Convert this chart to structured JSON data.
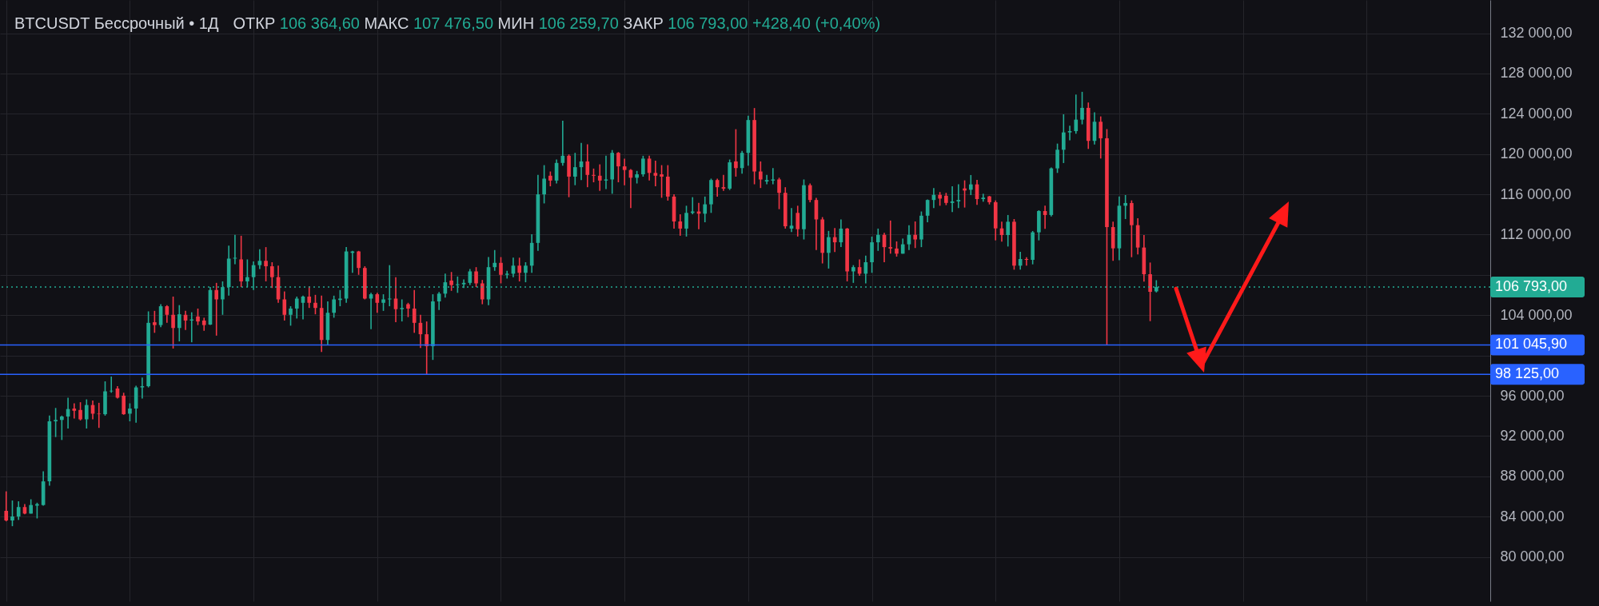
{
  "chart_data": {
    "type": "candlestick",
    "title": "BTCUSDT Бессрочный • 1Д",
    "annotations": [
      "ОТКР 106 364,60 МАКС 107 476,50 МИН 106 259,70 ЗАКР 106 793,00 +428,40 (+0,40%)"
    ],
    "categories": [
      null,
      null,
      null,
      null,
      null,
      null,
      null,
      null,
      null,
      null,
      null,
      null,
      null,
      null,
      null,
      null,
      null,
      null,
      null,
      null,
      null,
      null,
      null,
      null,
      null,
      null,
      null,
      null,
      null,
      null,
      null,
      null,
      null,
      null,
      null,
      null,
      null,
      null,
      null,
      null,
      null,
      null,
      null,
      null,
      null,
      null,
      null,
      null,
      null,
      null,
      null,
      null,
      null,
      null,
      null,
      null,
      null,
      null,
      null,
      null,
      null,
      null,
      null,
      null,
      null,
      null,
      null,
      null,
      null,
      null,
      null,
      null,
      null,
      null,
      null,
      null,
      null,
      null,
      null,
      null,
      null,
      null,
      null,
      null,
      null,
      null,
      null,
      null,
      null,
      null,
      null,
      null,
      null,
      null,
      null,
      null,
      null,
      null,
      null,
      null,
      null,
      null,
      null,
      null,
      null,
      null,
      null,
      null,
      null,
      null,
      null,
      null,
      null,
      null,
      null,
      null,
      null,
      null,
      null,
      null,
      null,
      null,
      null,
      null,
      null,
      null,
      null,
      null,
      null,
      null,
      null,
      null,
      null,
      null,
      null,
      null,
      null,
      null,
      null,
      null,
      null,
      null,
      null,
      null,
      null,
      null,
      null,
      null,
      null,
      null,
      null,
      null,
      null,
      null,
      null,
      null,
      null,
      null,
      null,
      null,
      null,
      null,
      null,
      null,
      null,
      null,
      null,
      null,
      null,
      null,
      null,
      null,
      null,
      null,
      null,
      null,
      null,
      null,
      null,
      null,
      null,
      null,
      null,
      null,
      null,
      null,
      null,
      null,
      null,
      null,
      null,
      null,
      null,
      null,
      null,
      null,
      null,
      null,
      null,
      null,
      null,
      null,
      null,
      null,
      null,
      null,
      null,
      null,
      null,
      null,
      null,
      null,
      null,
      null,
      null,
      null,
      null,
      null,
      null,
      null,
      null,
      null,
      null,
      null,
      null,
      null,
      null,
      null,
      null,
      null,
      null,
      null,
      null,
      null,
      null,
      null,
      null,
      null,
      null,
      null
    ],
    "ohlc": [
      [
        84580,
        86510,
        83530,
        83620
      ],
      [
        83620,
        85600,
        83050,
        84010
      ],
      [
        84010,
        85520,
        83670,
        84950
      ],
      [
        84950,
        85240,
        84240,
        84300
      ],
      [
        84300,
        85720,
        84300,
        85150
      ],
      [
        85090,
        85380,
        83820,
        85240
      ],
      [
        85150,
        88500,
        85090,
        87500
      ],
      [
        87500,
        94030,
        87080,
        93460
      ],
      [
        93460,
        94790,
        91900,
        93600
      ],
      [
        93600,
        94030,
        91610,
        93940
      ],
      [
        93940,
        95810,
        92750,
        94680
      ],
      [
        94730,
        95250,
        93740,
        94510
      ],
      [
        94590,
        95360,
        93550,
        93660
      ],
      [
        93660,
        95640,
        92750,
        95080
      ],
      [
        95080,
        95530,
        93660,
        94220
      ],
      [
        94220,
        95300,
        92810,
        94170
      ],
      [
        94170,
        97430,
        94030,
        96440
      ],
      [
        96440,
        97910,
        96300,
        96500
      ],
      [
        96720,
        96950,
        95730,
        95810
      ],
      [
        96010,
        96300,
        94110,
        94170
      ],
      [
        94220,
        95250,
        93460,
        94730
      ],
      [
        94730,
        97000,
        93320,
        96830
      ],
      [
        96830,
        97800,
        95730,
        96950
      ],
      [
        96950,
        104380,
        96830,
        103240
      ],
      [
        103300,
        104430,
        102250,
        103020
      ],
      [
        103020,
        105090,
        102820,
        104890
      ],
      [
        104890,
        105000,
        103240,
        104040
      ],
      [
        104040,
        105850,
        100690,
        102730
      ],
      [
        102730,
        105000,
        101400,
        104090
      ],
      [
        104040,
        104430,
        102530,
        103470
      ],
      [
        103470,
        104290,
        101310,
        103580
      ],
      [
        103870,
        104660,
        103020,
        103380
      ],
      [
        103470,
        103750,
        102450,
        103020
      ],
      [
        103070,
        106790,
        103020,
        106500
      ],
      [
        106500,
        107210,
        101970,
        105570
      ],
      [
        105570,
        107360,
        104040,
        106790
      ],
      [
        106790,
        110900,
        105940,
        109620
      ],
      [
        109620,
        111980,
        109060,
        109700
      ],
      [
        109540,
        111890,
        106790,
        107360
      ],
      [
        107360,
        109540,
        106790,
        107780
      ],
      [
        107780,
        109340,
        106500,
        108970
      ],
      [
        108970,
        110560,
        108580,
        109400
      ],
      [
        109400,
        110760,
        107360,
        108860
      ],
      [
        108860,
        109260,
        106700,
        107780
      ],
      [
        107780,
        108920,
        105230,
        105570
      ],
      [
        105570,
        106360,
        103470,
        104040
      ],
      [
        104040,
        104890,
        102960,
        104660
      ],
      [
        104660,
        105850,
        103670,
        105650
      ],
      [
        105230,
        105940,
        103580,
        105850
      ],
      [
        105850,
        106870,
        104720,
        105230
      ],
      [
        105230,
        106020,
        104090,
        104720
      ],
      [
        104720,
        105940,
        100350,
        101540
      ],
      [
        101540,
        105370,
        101030,
        104240
      ],
      [
        104240,
        105940,
        103750,
        105570
      ],
      [
        105510,
        106500,
        104890,
        105650
      ],
      [
        105650,
        110760,
        105230,
        110330
      ],
      [
        110190,
        110390,
        108210,
        110330
      ],
      [
        110330,
        110390,
        108010,
        108690
      ],
      [
        108690,
        108860,
        105570,
        105650
      ],
      [
        105650,
        106220,
        102620,
        106080
      ],
      [
        106080,
        106220,
        104240,
        105230
      ],
      [
        105230,
        106080,
        104430,
        105570
      ],
      [
        105570,
        108970,
        104890,
        105650
      ],
      [
        105650,
        107780,
        103300,
        104600
      ],
      [
        104600,
        105570,
        103380,
        104720
      ],
      [
        105090,
        105230,
        103810,
        104660
      ],
      [
        104660,
        106500,
        102250,
        103240
      ],
      [
        103240,
        104040,
        100750,
        102110
      ],
      [
        102110,
        103380,
        98125,
        100920
      ],
      [
        100920,
        106080,
        99560,
        105370
      ],
      [
        105370,
        106310,
        104520,
        106140
      ],
      [
        106140,
        108120,
        105740,
        107270
      ],
      [
        107440,
        108290,
        106420,
        106990
      ],
      [
        106990,
        107840,
        106220,
        107070
      ],
      [
        107070,
        107550,
        106700,
        107210
      ],
      [
        107210,
        108580,
        106990,
        108350
      ],
      [
        108350,
        108770,
        106790,
        107160
      ],
      [
        107160,
        107500,
        105090,
        105570
      ],
      [
        105570,
        109770,
        104990,
        108770
      ],
      [
        108770,
        110470,
        108410,
        109200
      ],
      [
        109200,
        109770,
        107160,
        108010
      ],
      [
        108010,
        108410,
        107640,
        108120
      ],
      [
        108120,
        109710,
        107780,
        108920
      ],
      [
        108920,
        109710,
        107360,
        108210
      ],
      [
        108210,
        109260,
        107270,
        108920
      ],
      [
        108920,
        112030,
        108210,
        111180
      ],
      [
        111180,
        117930,
        110390,
        116000
      ],
      [
        116000,
        118900,
        115100,
        117560
      ],
      [
        117850,
        118270,
        116800,
        117370
      ],
      [
        117370,
        119460,
        117080,
        119120
      ],
      [
        119120,
        123320,
        118840,
        119830
      ],
      [
        119830,
        119970,
        115720,
        117760
      ],
      [
        117760,
        120120,
        116910,
        118700
      ],
      [
        118700,
        121110,
        117420,
        119270
      ],
      [
        119270,
        120970,
        116710,
        117930
      ],
      [
        117930,
        118560,
        117200,
        117850
      ],
      [
        117850,
        118980,
        116350,
        117370
      ],
      [
        117370,
        119830,
        116520,
        117480
      ],
      [
        117480,
        120400,
        116060,
        120120
      ],
      [
        120120,
        120200,
        117200,
        118780
      ],
      [
        118780,
        119550,
        116910,
        118420
      ],
      [
        118420,
        118500,
        114640,
        117650
      ],
      [
        117650,
        118330,
        117080,
        117990
      ],
      [
        117990,
        119830,
        117760,
        119550
      ],
      [
        119550,
        119830,
        117370,
        118130
      ],
      [
        118130,
        119350,
        116800,
        117850
      ],
      [
        117990,
        118900,
        115660,
        117760
      ],
      [
        117760,
        118900,
        115380,
        115780
      ],
      [
        115780,
        116000,
        112600,
        113310
      ],
      [
        113310,
        114020,
        111890,
        112600
      ],
      [
        112600,
        114870,
        111810,
        114160
      ],
      [
        114160,
        115720,
        114020,
        114300
      ],
      [
        114300,
        115150,
        112540,
        114080
      ],
      [
        114080,
        115780,
        113230,
        115010
      ],
      [
        115010,
        117560,
        114160,
        117420
      ],
      [
        117420,
        117560,
        115780,
        116710
      ],
      [
        116710,
        117930,
        116350,
        116570
      ],
      [
        116570,
        119460,
        116430,
        119180
      ],
      [
        119270,
        122470,
        117760,
        118610
      ],
      [
        118610,
        120320,
        118050,
        120120
      ],
      [
        120120,
        123800,
        118840,
        123380
      ],
      [
        123380,
        124570,
        117000,
        118270
      ],
      [
        118270,
        119270,
        116630,
        117480
      ],
      [
        117280,
        117930,
        117000,
        117420
      ],
      [
        117370,
        118610,
        117000,
        117480
      ],
      [
        117480,
        117650,
        114530,
        116150
      ],
      [
        116150,
        116710,
        112600,
        112830
      ],
      [
        112600,
        114640,
        112260,
        112890
      ],
      [
        114160,
        114870,
        111810,
        112540
      ],
      [
        112540,
        117480,
        111520,
        116910
      ],
      [
        116910,
        117080,
        115210,
        115440
      ],
      [
        115440,
        115660,
        110470,
        113510
      ],
      [
        113510,
        113740,
        109140,
        110190
      ],
      [
        110190,
        112370,
        108630,
        111750
      ],
      [
        111750,
        112660,
        110280,
        111240
      ],
      [
        111240,
        113510,
        110760,
        112600
      ],
      [
        112600,
        112660,
        107360,
        108350
      ],
      [
        108350,
        108970,
        107210,
        108770
      ],
      [
        108770,
        109540,
        107920,
        108120
      ],
      [
        108120,
        109910,
        107160,
        109260
      ],
      [
        109260,
        111810,
        108210,
        111240
      ],
      [
        111240,
        112600,
        110390,
        111980
      ],
      [
        111980,
        112180,
        109260,
        110760
      ],
      [
        110760,
        113400,
        110110,
        110620
      ],
      [
        110620,
        111330,
        109820,
        110110
      ],
      [
        110110,
        111610,
        110110,
        111040
      ],
      [
        111040,
        112940,
        110470,
        111980
      ],
      [
        111980,
        113310,
        110670,
        111520
      ],
      [
        111520,
        114300,
        110760,
        113880
      ],
      [
        113880,
        115490,
        113230,
        115440
      ],
      [
        115440,
        116630,
        114640,
        115950
      ],
      [
        115950,
        116230,
        114870,
        115580
      ],
      [
        115860,
        116150,
        114930,
        115150
      ],
      [
        115150,
        116800,
        114250,
        115300
      ],
      [
        115300,
        117000,
        114640,
        115440
      ],
      [
        116590,
        117390,
        114690,
        116380
      ],
      [
        116460,
        117920,
        115930,
        116990
      ],
      [
        116990,
        117440,
        114950,
        115530
      ],
      [
        115530,
        116060,
        115270,
        115670
      ],
      [
        115800,
        115850,
        115000,
        115220
      ],
      [
        115220,
        115400,
        111430,
        112620
      ],
      [
        112620,
        113280,
        111300,
        111960
      ],
      [
        111960,
        113950,
        110820,
        113280
      ],
      [
        113280,
        113550,
        108520,
        108920
      ],
      [
        108920,
        110290,
        108520,
        109580
      ],
      [
        109580,
        109760,
        108920,
        109500
      ],
      [
        109500,
        112360,
        109050,
        112230
      ],
      [
        112230,
        114420,
        111430,
        114340
      ],
      [
        114340,
        114870,
        112570,
        113950
      ],
      [
        113950,
        118660,
        113810,
        118580
      ],
      [
        118580,
        121040,
        118130,
        120430
      ],
      [
        120430,
        123950,
        119110,
        122150
      ],
      [
        122150,
        122810,
        121360,
        122280
      ],
      [
        122280,
        125910,
        122020,
        123420
      ],
      [
        123420,
        126180,
        122950,
        124590
      ],
      [
        124590,
        125120,
        120510,
        121310
      ],
      [
        121310,
        124140,
        120960,
        123210
      ],
      [
        123210,
        123740,
        119560,
        121570
      ],
      [
        121570,
        122470,
        101045.9,
        112750
      ],
      [
        112750,
        113280,
        109390,
        110640
      ],
      [
        110640,
        115800,
        109450,
        114870
      ],
      [
        114870,
        115930,
        113550,
        115140
      ],
      [
        115140,
        115400,
        109760,
        112940
      ],
      [
        112940,
        113630,
        110030,
        110720
      ],
      [
        110720,
        111960,
        107330,
        108070
      ],
      [
        108070,
        109230,
        103410,
        106320
      ],
      [
        106364.6,
        107476.5,
        106259.7,
        106793
      ],
      null,
      null,
      null,
      null,
      null,
      null,
      null,
      null,
      null,
      null,
      null,
      null,
      null,
      null,
      null,
      null,
      null,
      null,
      null,
      null,
      null,
      null,
      null,
      null,
      null,
      null,
      null,
      null,
      null,
      null,
      null,
      null,
      null,
      null,
      null,
      null,
      null,
      null,
      null,
      null,
      null,
      null,
      null,
      null,
      null,
      null,
      null,
      null,
      null,
      null,
      null,
      null,
      null
    ],
    "colors": [
      "#f23645",
      "#22ab94",
      "#22ab94",
      "#f23645",
      "#22ab94",
      "#22ab94",
      "#22ab94",
      "#22ab94",
      "#22ab94",
      "#22ab94",
      "#22ab94",
      "#f23645",
      "#f23645",
      "#22ab94",
      "#f23645",
      "#f23645",
      "#22ab94",
      "#22ab94",
      "#f23645",
      "#f23645",
      "#22ab94",
      "#22ab94",
      "#22ab94",
      "#22ab94",
      "#f23645",
      "#22ab94",
      "#f23645",
      "#f23645",
      "#22ab94",
      "#f23645",
      "#22ab94",
      "#f23645",
      "#f23645",
      "#22ab94",
      "#f23645",
      "#22ab94",
      "#22ab94",
      "#22ab94",
      "#f23645",
      "#22ab94",
      "#22ab94",
      "#22ab94",
      "#f23645",
      "#f23645",
      "#f23645",
      "#f23645",
      "#22ab94",
      "#22ab94",
      "#22ab94",
      "#f23645",
      "#f23645",
      "#f23645",
      "#22ab94",
      "#22ab94",
      "#22ab94",
      "#22ab94",
      "#22ab94",
      "#f23645",
      "#f23645",
      "#22ab94",
      "#f23645",
      "#22ab94",
      "#22ab94",
      "#f23645",
      "#22ab94",
      "#f23645",
      "#f23645",
      "#f23645",
      "#f23645",
      "#22ab94",
      "#22ab94",
      "#22ab94",
      "#f23645",
      "#22ab94",
      "#22ab94",
      "#22ab94",
      "#f23645",
      "#f23645",
      "#22ab94",
      "#22ab94",
      "#f23645",
      "#22ab94",
      "#22ab94",
      "#f23645",
      "#22ab94",
      "#22ab94",
      "#22ab94",
      "#22ab94",
      "#f23645",
      "#22ab94",
      "#22ab94",
      "#f23645",
      "#22ab94",
      "#22ab94",
      "#f23645",
      "#f23645",
      "#f23645",
      "#22ab94",
      "#22ab94",
      "#f23645",
      "#f23645",
      "#f23645",
      "#22ab94",
      "#22ab94",
      "#f23645",
      "#f23645",
      "#f23645",
      "#f23645",
      "#f23645",
      "#f23645",
      "#22ab94",
      "#22ab94",
      "#f23645",
      "#22ab94",
      "#22ab94",
      "#f23645",
      "#f23645",
      "#22ab94",
      "#f23645",
      "#22ab94",
      "#22ab94",
      "#f23645",
      "#f23645",
      "#22ab94",
      "#22ab94",
      "#f23645",
      "#f23645",
      "#22ab94",
      "#f23645",
      "#22ab94",
      "#f23645",
      "#f23645",
      "#f23645",
      "#22ab94",
      "#f23645",
      "#22ab94",
      "#f23645",
      "#22ab94",
      "#f23645",
      "#22ab94",
      "#22ab94",
      "#22ab94",
      "#f23645",
      "#f23645",
      "#f23645",
      "#22ab94",
      "#22ab94",
      "#f23645",
      "#22ab94",
      "#22ab94",
      "#22ab94",
      "#f23645",
      "#f23645",
      "#22ab94",
      "#22ab94",
      "#f23645",
      "#22ab94",
      "#f23645",
      "#22ab94",
      "#f23645",
      "#f23645",
      "#f23645",
      "#22ab94",
      "#f23645",
      "#22ab94",
      "#f23645",
      "#22ab94",
      "#22ab94",
      "#f23645",
      "#22ab94",
      "#22ab94",
      "#22ab94",
      "#22ab94",
      "#22ab94",
      "#22ab94",
      "#f23645",
      "#22ab94",
      "#f23645",
      "#f23645",
      "#f23645",
      "#22ab94",
      "#22ab94",
      "#f23645",
      "#f23645",
      "#f23645",
      "#f23645",
      "#22ab94",
      null,
      null,
      null,
      null,
      null,
      null,
      null,
      null,
      null,
      null,
      null,
      null,
      null,
      null,
      null,
      null,
      null,
      null,
      null,
      null,
      null,
      null,
      null,
      null,
      null,
      null,
      null,
      null,
      null,
      null,
      null,
      null,
      null,
      null,
      null,
      null,
      null,
      null,
      null,
      null,
      null,
      null,
      null,
      null,
      null,
      null,
      null,
      null,
      null,
      null,
      null,
      null,
      null
    ],
    "ylim": [
      75600,
      135300
    ],
    "yticks": [
      {
        "value": 80000,
        "label": "80 000,00"
      },
      {
        "value": 84000,
        "label": "84 000,00"
      },
      {
        "value": 88000,
        "label": "88 000,00"
      },
      {
        "value": 92000,
        "label": "92 000,00"
      },
      {
        "value": 96000,
        "label": "96 000,00"
      },
      {
        "value": 100000,
        "label": null
      },
      {
        "value": 104000,
        "label": "104 000,00"
      },
      {
        "value": 108000,
        "label": null
      },
      {
        "value": 112000,
        "label": "112 000,00"
      },
      {
        "value": 116000,
        "label": "116 000,00"
      },
      {
        "value": 120000,
        "label": "120 000,00"
      },
      {
        "value": 124000,
        "label": "124 000,00"
      },
      {
        "value": 128000,
        "label": "128 000,00"
      },
      {
        "value": 132000,
        "label": "132 000,00"
      }
    ],
    "ref_lines": [
      {
        "axis": "y",
        "value": 106793,
        "label": "106 793,00",
        "color": "#22ab94",
        "line_style": "dotted"
      },
      {
        "axis": "y",
        "value": 101045.9,
        "label": "101 045,90",
        "color": "#2962ff",
        "line_style": "solid"
      },
      {
        "axis": "y",
        "value": 98125,
        "label": "98 125,00",
        "color": "#2962ff",
        "line_style": "solid"
      }
    ],
    "grid": true,
    "tick_labels": "y"
  }
}
